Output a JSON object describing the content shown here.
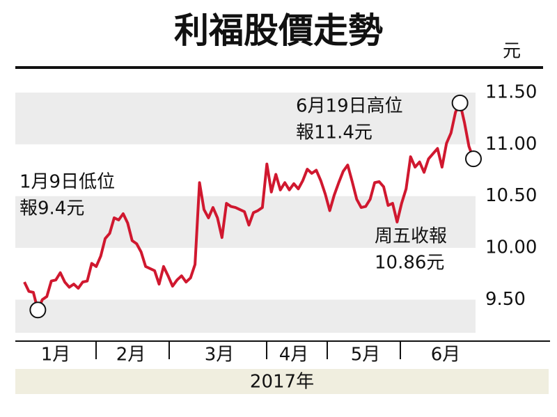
{
  "chart_data": {
    "type": "line",
    "title": "利福股價走勢",
    "unit": "元",
    "series": [
      {
        "color": "#d0182f",
        "values": [
          9.67,
          9.58,
          9.57,
          9.4,
          9.5,
          9.53,
          9.68,
          9.69,
          9.76,
          9.67,
          9.62,
          9.65,
          9.61,
          9.67,
          9.68,
          9.85,
          9.82,
          9.92,
          10.09,
          10.14,
          10.29,
          10.27,
          10.33,
          10.24,
          10.07,
          10.04,
          9.96,
          9.82,
          9.8,
          9.78,
          9.65,
          9.82,
          9.73,
          9.63,
          9.69,
          9.73,
          9.67,
          9.71,
          9.84,
          10.63,
          10.37,
          10.29,
          10.39,
          10.29,
          10.1,
          10.43,
          10.4,
          10.39,
          10.37,
          10.35,
          10.22,
          10.34,
          10.36,
          10.39,
          10.81,
          10.54,
          10.71,
          10.56,
          10.63,
          10.56,
          10.62,
          10.57,
          10.65,
          10.76,
          10.72,
          10.75,
          10.65,
          10.52,
          10.36,
          10.51,
          10.63,
          10.74,
          10.8,
          10.64,
          10.47,
          10.39,
          10.4,
          10.47,
          10.63,
          10.64,
          10.59,
          10.41,
          10.43,
          10.25,
          10.43,
          10.57,
          10.88,
          10.78,
          10.83,
          10.73,
          10.86,
          10.91,
          10.96,
          10.78,
          11.01,
          11.11,
          11.31,
          11.4,
          11.21,
          10.98,
          10.86
        ]
      }
    ],
    "months": [
      "1月",
      "2月",
      "3月",
      "4月",
      "5月",
      "6月"
    ],
    "xlabel": "2017年",
    "ylim": [
      9.18,
      11.5
    ],
    "yticks": [
      {
        "value": 9.5,
        "label": "9.50"
      },
      {
        "value": 10,
        "label": "10.00"
      },
      {
        "value": 10.5,
        "label": "10.50"
      },
      {
        "value": 11,
        "label": "11.00"
      },
      {
        "value": 11.5,
        "label": "11.50"
      }
    ],
    "annotations": {
      "low": [
        "1月9日低位",
        "報9.4元"
      ],
      "high": [
        "6月19日高位",
        "報11.4元"
      ],
      "close": [
        "周五收報",
        "10.86元"
      ]
    }
  }
}
